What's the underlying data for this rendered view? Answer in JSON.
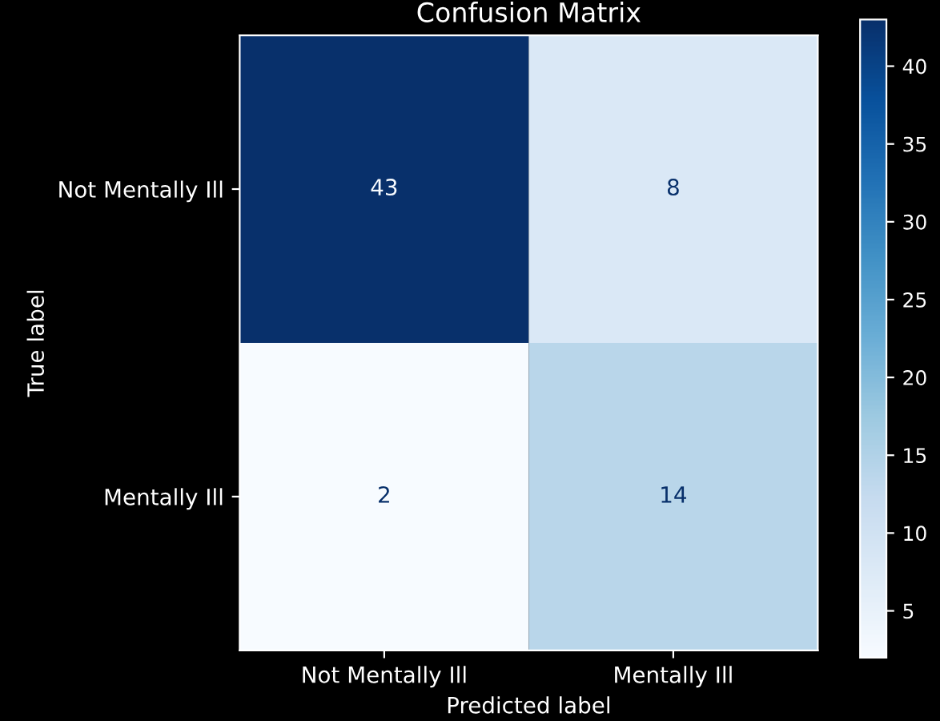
{
  "chart_data": {
    "type": "heatmap",
    "title": "Confusion Matrix",
    "xlabel": "Predicted label",
    "ylabel": "True label",
    "categories": [
      "Not Mentally Ill",
      "Mentally Ill"
    ],
    "y_categories": [
      "Not Mentally Ill",
      "Mentally Ill"
    ],
    "cells": [
      [
        43,
        8
      ],
      [
        2,
        14
      ]
    ],
    "data_labels": true,
    "clim": [
      2,
      43
    ],
    "cticks": [
      5,
      10,
      15,
      20,
      25,
      30,
      35,
      40
    ]
  }
}
